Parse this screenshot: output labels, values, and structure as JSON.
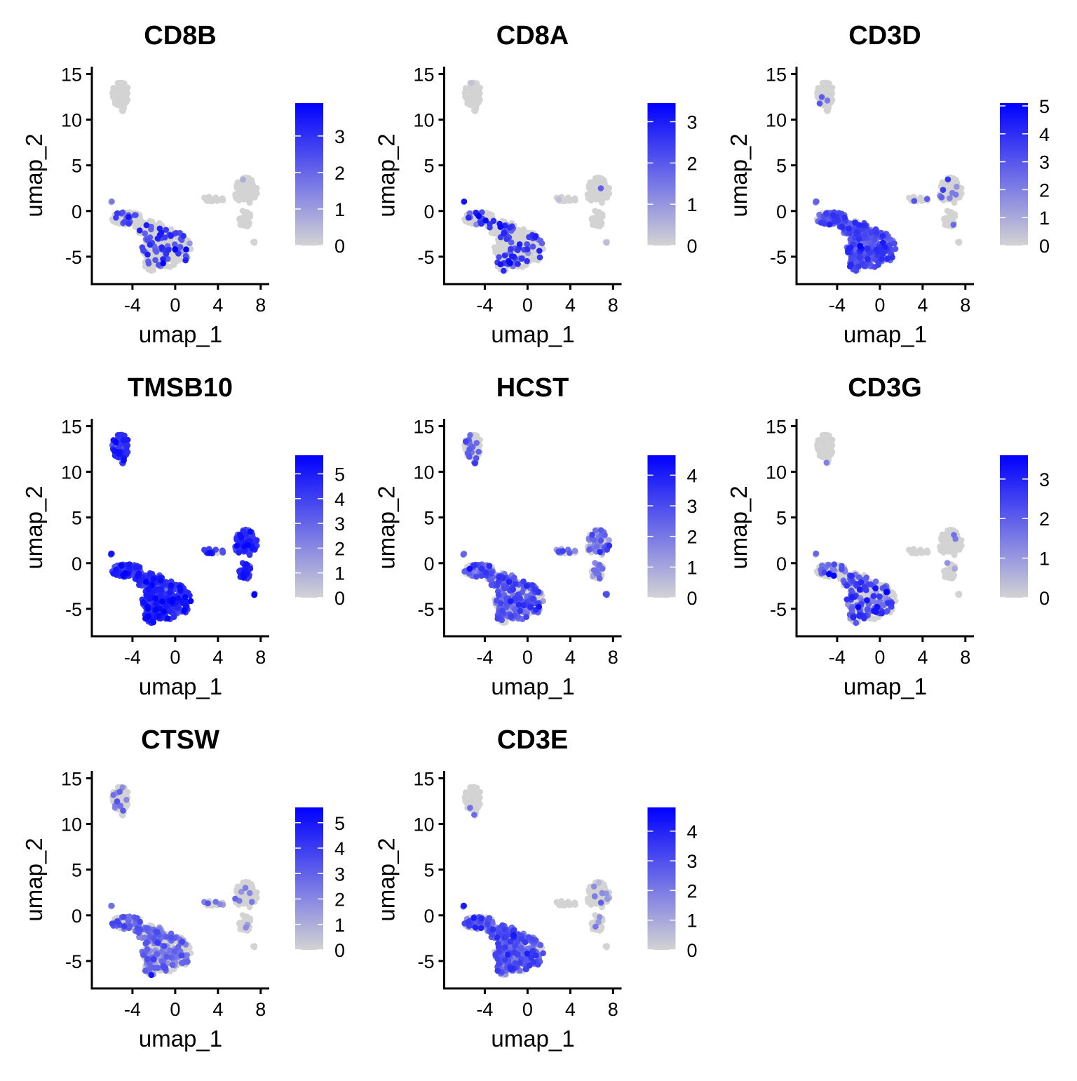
{
  "chart_data": {
    "type": "scatter",
    "layout": {
      "columns": 3,
      "rows": 3
    },
    "xlabel": "umap_1",
    "ylabel": "umap_2",
    "xlim": [
      -7.8,
      8.8
    ],
    "ylim": [
      -8,
      15.8
    ],
    "xticks": [
      -4,
      0,
      4,
      8
    ],
    "yticks": [
      15,
      10,
      5,
      0,
      -5
    ],
    "xtick_labels": [
      "-4",
      "0",
      "4",
      "8"
    ],
    "ytick_labels": [
      "15",
      "10",
      "5",
      "0",
      "-5"
    ],
    "grid": false,
    "color_scale": {
      "low": "#D3D3D3",
      "high": "#0000FF"
    },
    "clusters": [
      {
        "group": "top",
        "cx": -5.1,
        "cy": 12.8,
        "rx": 0.8,
        "ry": 1.4,
        "n": 60
      },
      {
        "group": "top",
        "cx": -4.8,
        "cy": 11.2,
        "rx": 0.25,
        "ry": 0.4,
        "n": 5
      },
      {
        "group": "main",
        "cx": -5.9,
        "cy": 1.1,
        "rx": 0.2,
        "ry": 0.2,
        "n": 3
      },
      {
        "group": "main",
        "cx": -4.5,
        "cy": -0.8,
        "rx": 1.5,
        "ry": 0.7,
        "n": 70
      },
      {
        "group": "main",
        "cx": -2.5,
        "cy": -1.8,
        "rx": 1.3,
        "ry": 0.8,
        "n": 60
      },
      {
        "group": "main",
        "cx": -0.8,
        "cy": -4.0,
        "rx": 2.3,
        "ry": 2.2,
        "n": 230
      },
      {
        "group": "main",
        "cx": -2.0,
        "cy": -5.5,
        "rx": 1.0,
        "ry": 1.1,
        "n": 50
      },
      {
        "group": "right",
        "cx": 3.6,
        "cy": 1.3,
        "rx": 1.1,
        "ry": 0.3,
        "n": 20
      },
      {
        "group": "right",
        "cx": 6.6,
        "cy": 2.2,
        "rx": 1.1,
        "ry": 1.5,
        "n": 90
      },
      {
        "group": "right",
        "cx": 6.5,
        "cy": -0.8,
        "rx": 0.6,
        "ry": 1.0,
        "n": 35
      },
      {
        "group": "right",
        "cx": 7.3,
        "cy": -3.4,
        "rx": 0.15,
        "ry": 0.15,
        "n": 3
      }
    ],
    "panels": [
      {
        "title": "CD8B",
        "scale_max": 3.9,
        "legend_ticks": [
          0,
          1,
          2,
          3
        ],
        "expression": {
          "top": [
            0,
            0
          ],
          "main": [
            0.2,
            2.5
          ],
          "right": [
            0.01,
            2
          ]
        }
      },
      {
        "title": "CD8A",
        "scale_max": 3.45,
        "legend_ticks": [
          0,
          1,
          2,
          3
        ],
        "expression": {
          "top": [
            0.01,
            1
          ],
          "main": [
            0.2,
            2.4
          ],
          "right": [
            0.01,
            1
          ]
        }
      },
      {
        "title": "CD3D",
        "scale_max": 5.1,
        "legend_ticks": [
          0,
          1,
          2,
          3,
          4,
          5
        ],
        "expression": {
          "top": [
            0.03,
            3
          ],
          "main": [
            0.85,
            3
          ],
          "right": [
            0.05,
            2.5
          ]
        }
      },
      {
        "title": "TMSB10",
        "scale_max": 5.75,
        "legend_ticks": [
          0,
          1,
          2,
          3,
          4,
          5
        ],
        "expression": {
          "top": [
            0.97,
            4.2
          ],
          "main": [
            0.98,
            4.3
          ],
          "right": [
            0.97,
            4.2
          ]
        }
      },
      {
        "title": "HCST",
        "scale_max": 4.65,
        "legend_ticks": [
          0,
          1,
          2,
          3,
          4
        ],
        "expression": {
          "top": [
            0.2,
            2.5
          ],
          "main": [
            0.6,
            2.5
          ],
          "right": [
            0.5,
            2
          ]
        }
      },
      {
        "title": "CD3G",
        "scale_max": 3.6,
        "legend_ticks": [
          0,
          1,
          2,
          3
        ],
        "expression": {
          "top": [
            0.02,
            2
          ],
          "main": [
            0.4,
            2
          ],
          "right": [
            0.03,
            2
          ]
        }
      },
      {
        "title": "CTSW",
        "scale_max": 5.6,
        "legend_ticks": [
          0,
          1,
          2,
          3,
          4,
          5
        ],
        "expression": {
          "top": [
            0.1,
            2
          ],
          "main": [
            0.45,
            2.5
          ],
          "right": [
            0.08,
            2
          ]
        }
      },
      {
        "title": "CD3E",
        "scale_max": 4.8,
        "legend_ticks": [
          0,
          1,
          2,
          3,
          4
        ],
        "expression": {
          "top": [
            0.05,
            2
          ],
          "main": [
            0.8,
            2.5
          ],
          "right": [
            0.1,
            1.5
          ]
        }
      }
    ]
  }
}
